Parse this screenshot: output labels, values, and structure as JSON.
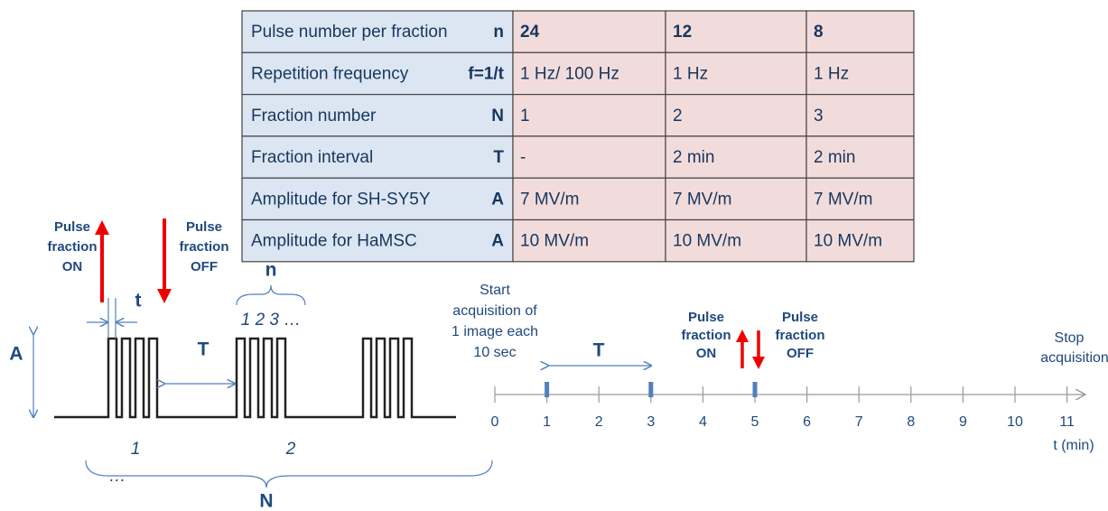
{
  "table": {
    "rows": [
      {
        "label": "Pulse number per fraction",
        "symbol": "n",
        "values": [
          "24",
          "12",
          "8"
        ]
      },
      {
        "label": "Repetition frequency",
        "symbol": "f=1/t",
        "values": [
          "1 Hz/ 100 Hz",
          "1 Hz",
          "1 Hz"
        ]
      },
      {
        "label": "Fraction number",
        "symbol": "N",
        "values": [
          "1",
          "2",
          "3"
        ]
      },
      {
        "label": "Fraction interval",
        "symbol": "T",
        "values": [
          "-",
          "2 min",
          "2 min"
        ]
      },
      {
        "label": "Amplitude for SH-SY5Y",
        "symbol": "A",
        "values": [
          "7 MV/m",
          "7 MV/m",
          "7 MV/m"
        ]
      },
      {
        "label": "Amplitude for HaMSC",
        "symbol": "A",
        "values": [
          "10 MV/m",
          "10 MV/m",
          "10 MV/m"
        ]
      }
    ]
  },
  "waveform": {
    "pulse_on": [
      "Pulse",
      "fraction",
      "ON"
    ],
    "pulse_off": [
      "Pulse",
      "fraction",
      "OFF"
    ],
    "t_label": "t",
    "n_label": "n",
    "pulse_index": "1 2 3 …",
    "T_label": "T",
    "A_label": "A",
    "fraction_1": "1",
    "fraction_2": "2",
    "ellipsis": "…",
    "N_label": "N"
  },
  "timeline": {
    "start": [
      "Start",
      "acquisition of",
      "1 image each",
      "10 sec"
    ],
    "T_label": "T",
    "pulse_on": [
      "Pulse",
      "fraction",
      "ON"
    ],
    "pulse_off": [
      "Pulse",
      "fraction",
      "OFF"
    ],
    "stop": [
      "Stop",
      "acquisition"
    ],
    "ticks": [
      "0",
      "1",
      "2",
      "3",
      "4",
      "5",
      "6",
      "7",
      "8",
      "9",
      "10",
      "11"
    ],
    "axis_label": "t (min)"
  }
}
